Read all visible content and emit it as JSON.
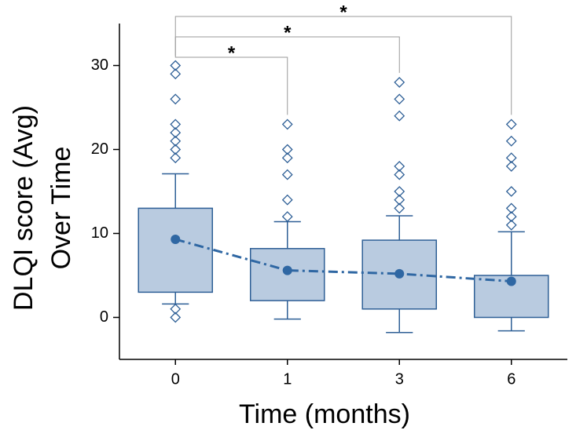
{
  "chart_data": {
    "type": "box",
    "x_label": "Time (months)",
    "y_label": [
      "DLQI score (Avg)",
      "Over Time"
    ],
    "categories": [
      "0",
      "1",
      "3",
      "6"
    ],
    "ylim": [
      -5,
      35
    ],
    "yticks": [
      0,
      10,
      20,
      30
    ],
    "box_color": "#b9cbe0",
    "line_color": "#2e5f96",
    "mean_color": "#2f67a3",
    "boxes": [
      {
        "q1": 3,
        "q3": 13,
        "whisker_low": 1.6,
        "whisker_high": 17.1,
        "mean": 9.3,
        "outliers": [
          30,
          29,
          26,
          23,
          22,
          21,
          20,
          19,
          1,
          0
        ]
      },
      {
        "q1": 2,
        "q3": 8.2,
        "whisker_low": -0.2,
        "whisker_high": 11.4,
        "mean": 5.6,
        "outliers": [
          23,
          20,
          19,
          17,
          14,
          12
        ]
      },
      {
        "q1": 1,
        "q3": 9.2,
        "whisker_low": -1.8,
        "whisker_high": 12.1,
        "mean": 5.2,
        "outliers": [
          28,
          26,
          24,
          18,
          17,
          15,
          14,
          13
        ]
      },
      {
        "q1": 0,
        "q3": 5,
        "whisker_low": -1.6,
        "whisker_high": 10.2,
        "mean": 4.3,
        "outliers": [
          23,
          21,
          19,
          18,
          15,
          13,
          12,
          11
        ]
      }
    ],
    "comparisons": [
      {
        "from": 0,
        "to": 1,
        "label": "*"
      },
      {
        "from": 0,
        "to": 2,
        "label": "*"
      },
      {
        "from": 0,
        "to": 3,
        "label": "*"
      }
    ]
  }
}
